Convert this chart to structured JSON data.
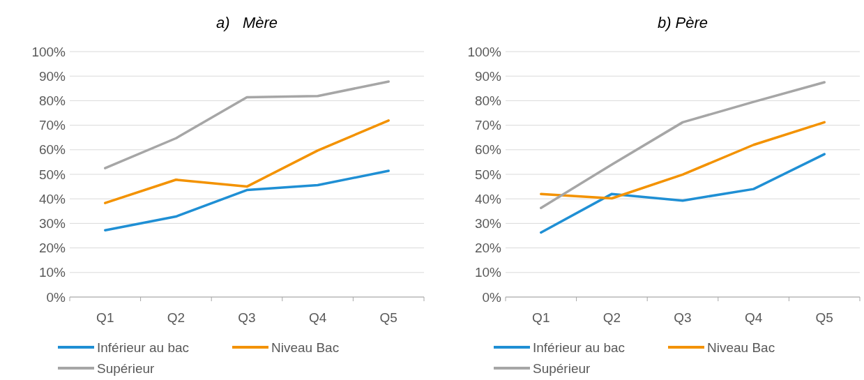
{
  "chart_data": [
    {
      "type": "line",
      "title": "a)   Mère",
      "categories": [
        "Q1",
        "Q2",
        "Q3",
        "Q4",
        "Q5"
      ],
      "ylim": [
        0,
        100
      ],
      "yticks": [
        {
          "value": 0,
          "label": "0%"
        },
        {
          "value": 10,
          "label": "10%"
        },
        {
          "value": 20,
          "label": "20%"
        },
        {
          "value": 30,
          "label": "30%"
        },
        {
          "value": 40,
          "label": "40%"
        },
        {
          "value": 50,
          "label": "50%"
        },
        {
          "value": 60,
          "label": "60%"
        },
        {
          "value": 70,
          "label": "70%"
        },
        {
          "value": 80,
          "label": "80%"
        },
        {
          "value": 90,
          "label": "90%"
        },
        {
          "value": 100,
          "label": "100%"
        }
      ],
      "grid": "y",
      "legend": "bottom",
      "marker": "none",
      "series": [
        {
          "name": "Inférieur au bac",
          "color": "#1f8fd4",
          "values": [
            27.2,
            32.8,
            43.6,
            45.6,
            51.4
          ]
        },
        {
          "name": "Niveau Bac",
          "color": "#f39200",
          "values": [
            38.3,
            47.8,
            45,
            59.7,
            71.9
          ]
        },
        {
          "name": "Supérieur",
          "color": "#a6a6a6",
          "values": [
            52.5,
            64.7,
            81.4,
            81.9,
            87.8
          ]
        }
      ]
    },
    {
      "type": "line",
      "title": "b) Père",
      "categories": [
        "Q1",
        "Q2",
        "Q3",
        "Q4",
        "Q5"
      ],
      "ylim": [
        0,
        100
      ],
      "yticks": [
        {
          "value": 0,
          "label": "0%"
        },
        {
          "value": 10,
          "label": "10%"
        },
        {
          "value": 20,
          "label": "20%"
        },
        {
          "value": 30,
          "label": "30%"
        },
        {
          "value": 40,
          "label": "40%"
        },
        {
          "value": 50,
          "label": "50%"
        },
        {
          "value": 60,
          "label": "60%"
        },
        {
          "value": 70,
          "label": "70%"
        },
        {
          "value": 80,
          "label": "80%"
        },
        {
          "value": 90,
          "label": "90%"
        },
        {
          "value": 100,
          "label": "100%"
        }
      ],
      "grid": "y",
      "legend": "bottom",
      "marker": "none",
      "series": [
        {
          "name": "Inférieur au bac",
          "color": "#1f8fd4",
          "values": [
            26.3,
            42,
            39.3,
            44,
            58.2
          ]
        },
        {
          "name": "Niveau Bac",
          "color": "#f39200",
          "values": [
            42,
            40.2,
            49.9,
            62,
            71.2
          ]
        },
        {
          "name": "Supérieur",
          "color": "#a6a6a6",
          "values": [
            36.3,
            54,
            71.2,
            79.5,
            87.5
          ]
        }
      ]
    }
  ]
}
